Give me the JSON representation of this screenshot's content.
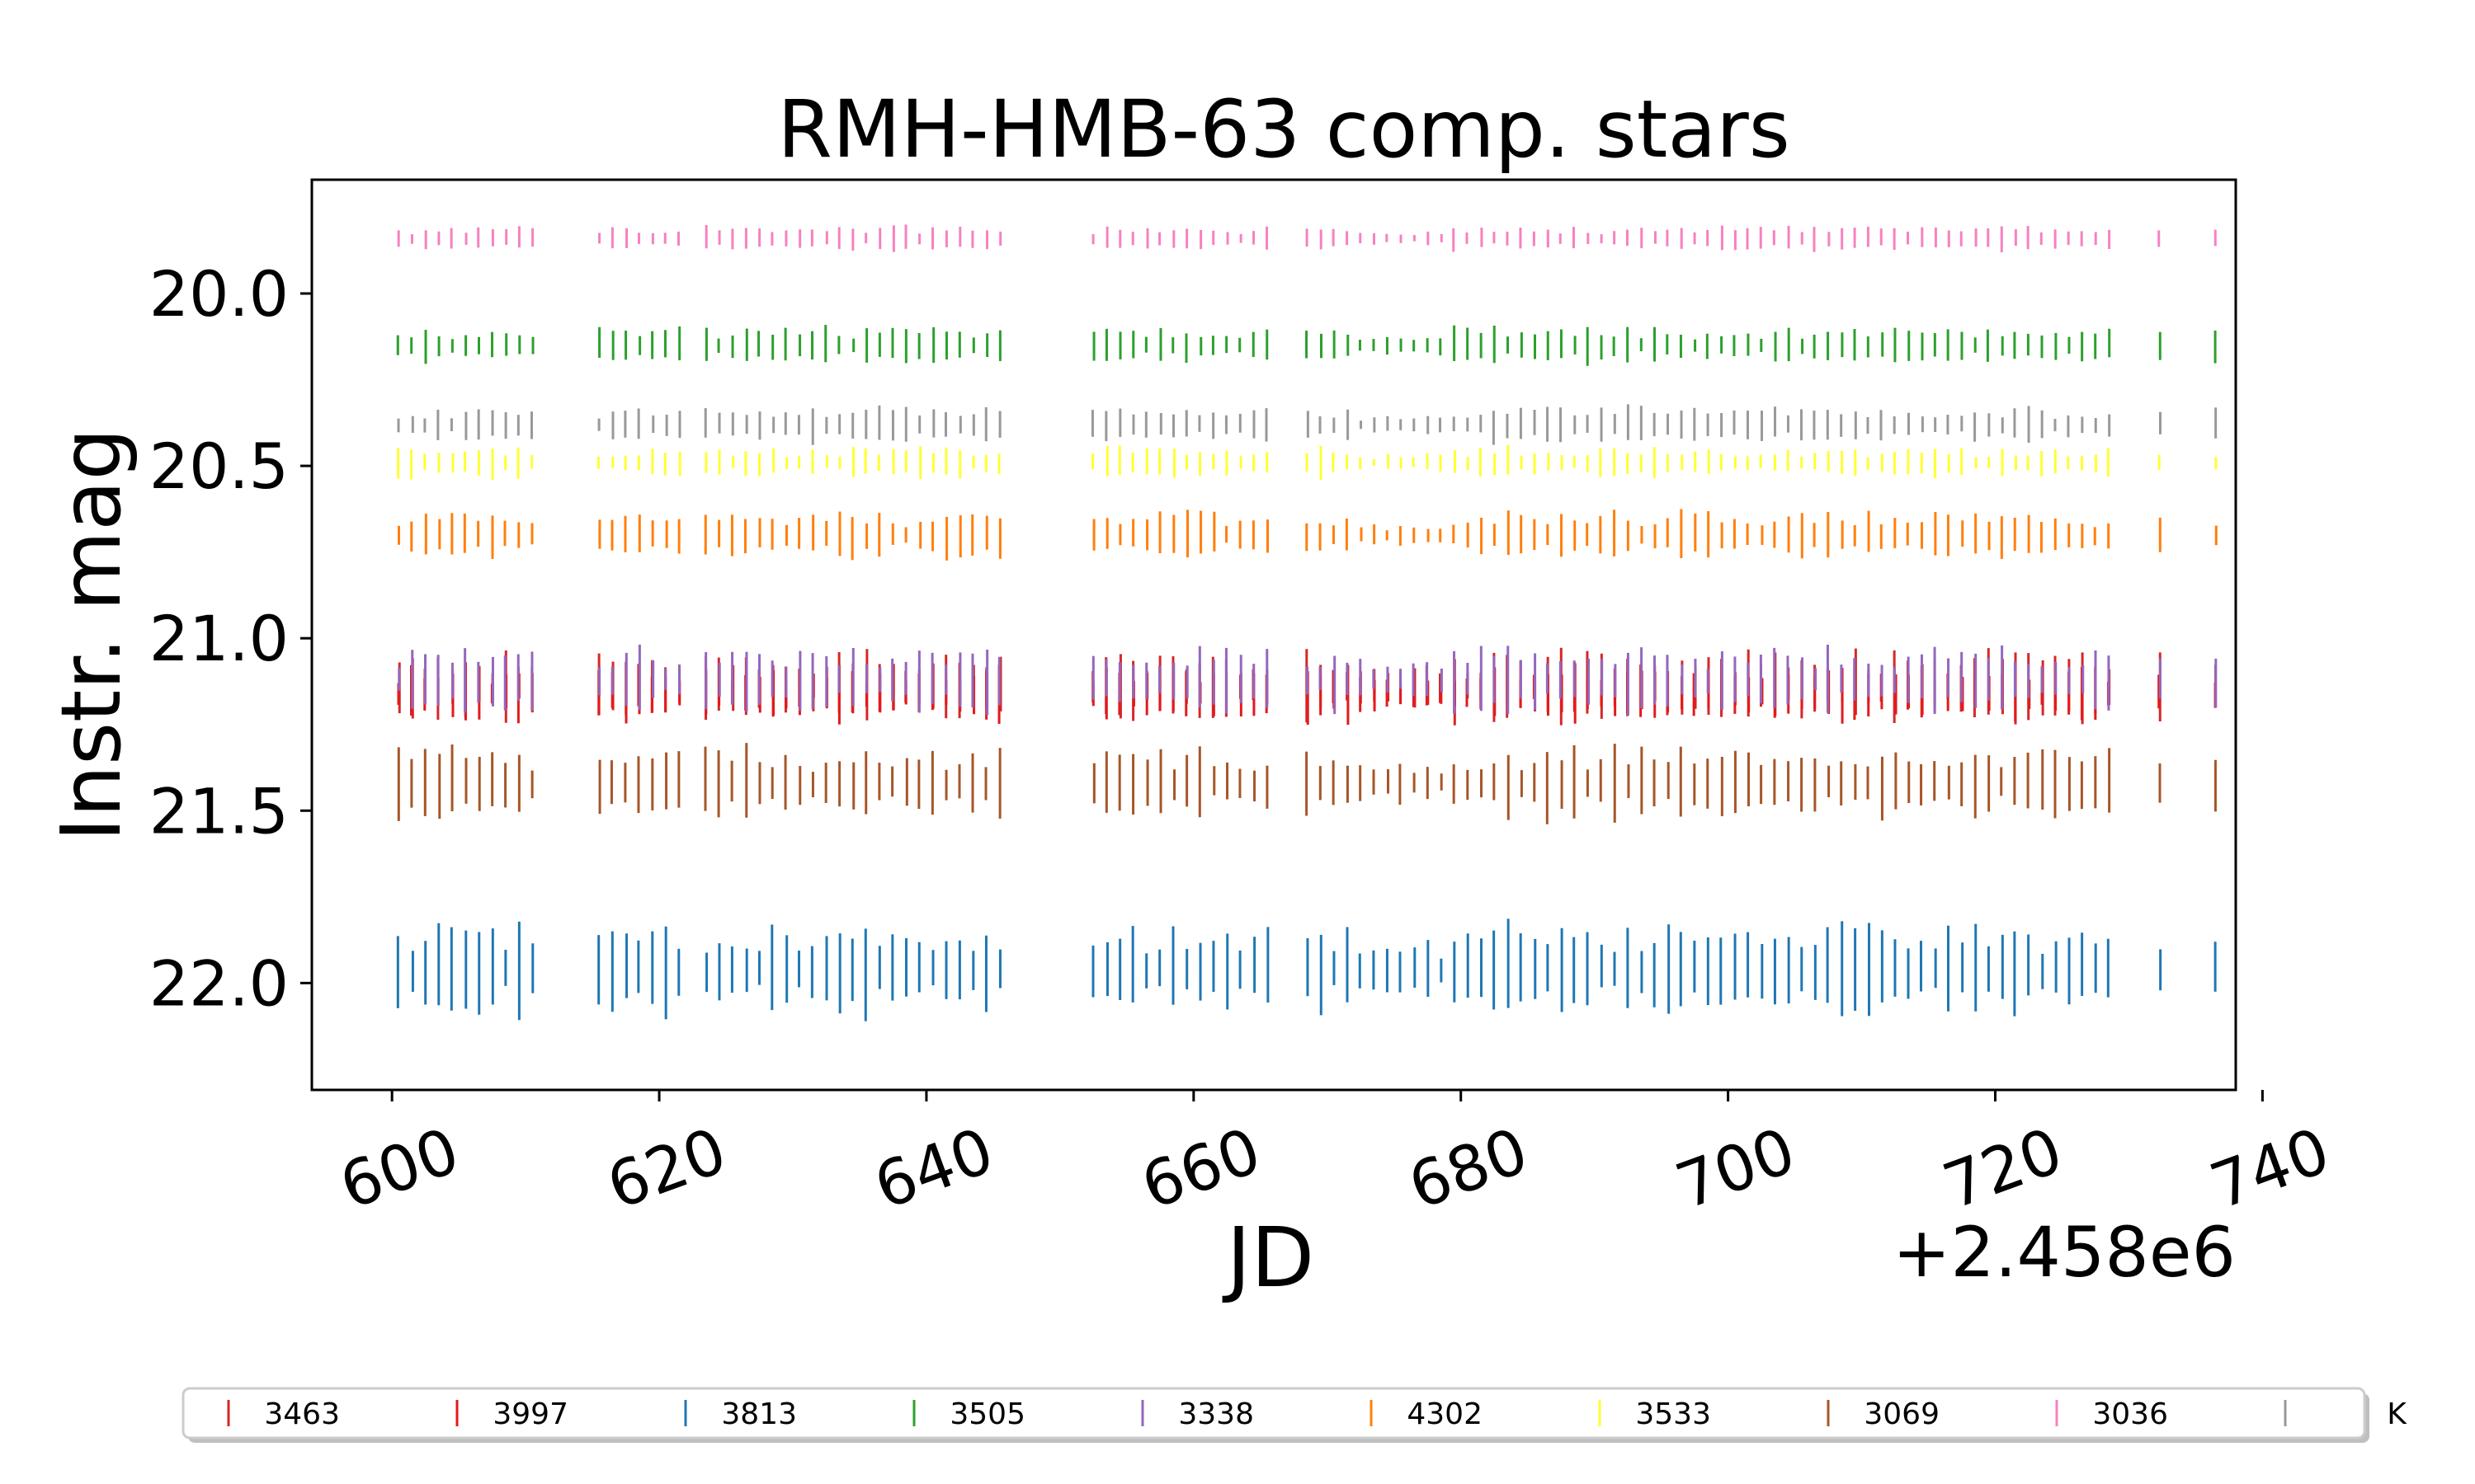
{
  "chart_data": {
    "type": "scatter",
    "title": "RMH-HMB-63 comp. stars",
    "xlabel": "JD",
    "ylabel": "Instr. mag",
    "x_offset_label": "+2.458e6",
    "xlim": [
      594,
      738
    ],
    "ylim": [
      22.31,
      19.67
    ],
    "y_inverted": true,
    "xticks": [
      600,
      620,
      640,
      660,
      680,
      700,
      720,
      740
    ],
    "xtick_labels": [
      "600",
      "620",
      "640",
      "660",
      "680",
      "700",
      "720",
      "740"
    ],
    "yticks": [
      20.0,
      20.5,
      21.0,
      21.5,
      22.0
    ],
    "ytick_labels": [
      "20.0",
      "20.5",
      "21.0",
      "21.5",
      "22.0"
    ],
    "legend_position": "bottom",
    "marker": "vertical-tick",
    "observation_nights": [
      [
        600.5,
        610.5,
        1.0
      ],
      [
        615.5,
        621.5,
        1.0
      ],
      [
        623.5,
        645.5,
        1.0
      ],
      [
        652.5,
        665.5,
        1.0
      ],
      [
        668.5,
        671.5,
        1.0
      ],
      [
        672.5,
        678.5,
        0.55
      ],
      [
        679.5,
        687.5,
        1.0
      ],
      [
        688.5,
        728.5,
        1.0
      ],
      [
        732.3,
        732.3,
        1.0
      ],
      [
        736.5,
        736.5,
        1.0
      ]
    ],
    "series": [
      {
        "name": "3463",
        "color": "#d62728",
        "mean_mag": 21.14,
        "spread": 0.07
      },
      {
        "name": "3997",
        "color": "#e31a1c",
        "mean_mag": 21.16,
        "spread": 0.06
      },
      {
        "name": "3813",
        "color": "#1f77b4",
        "mean_mag": 21.96,
        "spread": 0.09
      },
      {
        "name": "3505",
        "color": "#2ca02c",
        "mean_mag": 20.15,
        "spread": 0.035
      },
      {
        "name": "3338",
        "color": "#9467bd",
        "mean_mag": 21.12,
        "spread": 0.065
      },
      {
        "name": "4302",
        "color": "#ff7f0e",
        "mean_mag": 20.7,
        "spread": 0.045
      },
      {
        "name": "3533",
        "color": "#ffff33",
        "mean_mag": 20.49,
        "spread": 0.03
      },
      {
        "name": "3069",
        "color": "#a65628",
        "mean_mag": 21.42,
        "spread": 0.07
      },
      {
        "name": "3036",
        "color": "#f781bf",
        "mean_mag": 19.84,
        "spread": 0.025
      },
      {
        "name": "K",
        "color": "#999999",
        "mean_mag": 20.38,
        "spread": 0.035
      }
    ]
  }
}
